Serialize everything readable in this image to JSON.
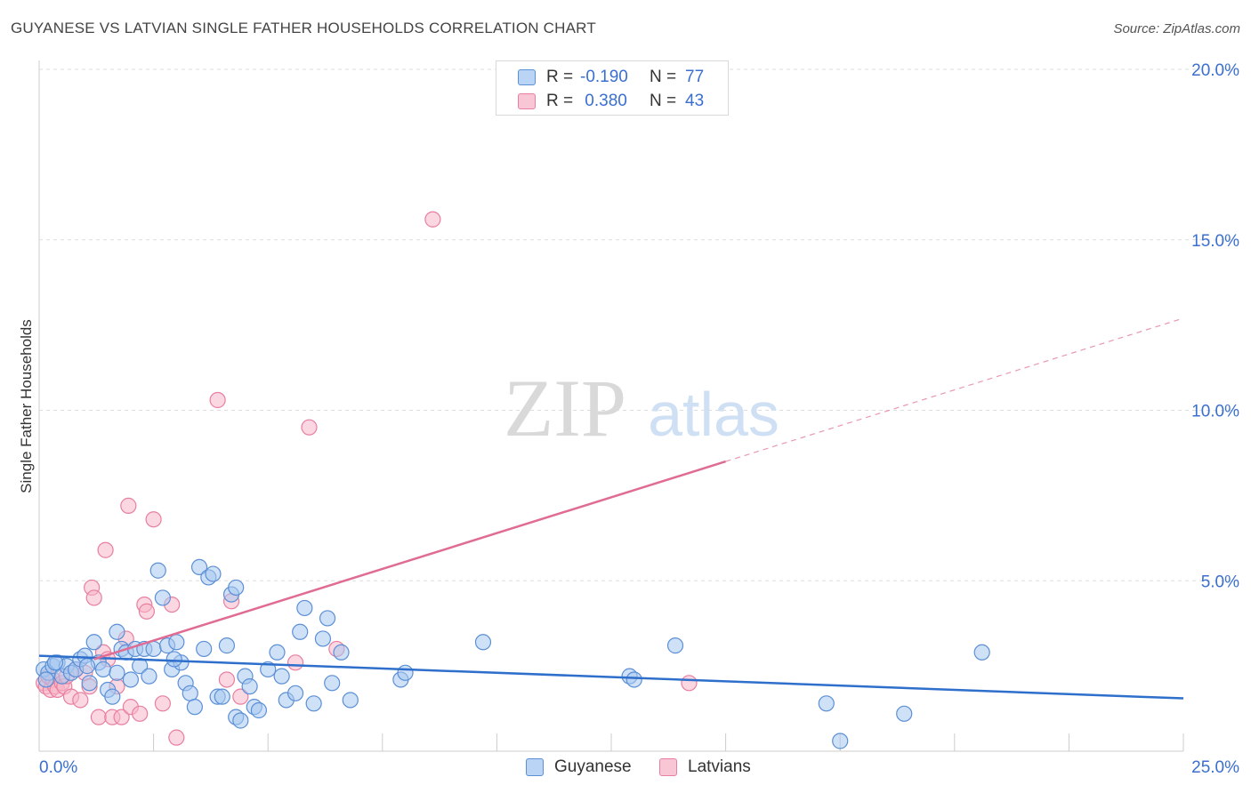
{
  "header": {
    "title": "GUYANESE VS LATVIAN SINGLE FATHER HOUSEHOLDS CORRELATION CHART",
    "source": "Source: ZipAtlas.com"
  },
  "watermark": {
    "zip": "ZIP",
    "atlas": "atlas"
  },
  "legend": {
    "rows": [
      {
        "r_label": "R =",
        "r_value": "-0.190",
        "n_label": "N =",
        "n_value": "77"
      },
      {
        "r_label": "R =",
        "r_value": " 0.380",
        "n_label": "N =",
        "n_value": "43"
      }
    ]
  },
  "colors": {
    "guyanese_fill": "#a8c8f0",
    "guyanese_stroke": "#5b8fd6",
    "guyanese_line": "#2f6fcc",
    "latvians_fill": "#f7b6c9",
    "latvians_stroke": "#e87fa0",
    "latvians_line": "#e06c94",
    "axis_text": "#3a6fd0",
    "grid": "#dddddd"
  },
  "chart_data": {
    "type": "scatter",
    "title": "GUYANESE VS LATVIAN SINGLE FATHER HOUSEHOLDS CORRELATION CHART",
    "xlabel": "",
    "ylabel": "Single Father Households",
    "xlim": [
      0,
      25
    ],
    "ylim": [
      0,
      20
    ],
    "x_tick_labels": [
      "0.0%",
      "25.0%"
    ],
    "y_ticks": [
      5,
      10,
      15,
      20
    ],
    "y_tick_labels": [
      "5.0%",
      "10.0%",
      "15.0%",
      "20.0%"
    ],
    "legend_position": "bottom-center",
    "series": [
      {
        "name": "Guyanese",
        "r": -0.19,
        "n": 77,
        "trend": {
          "x0": 0,
          "y0": 2.8,
          "x1": 25,
          "y1": 1.55,
          "solid_until": 25
        },
        "points": [
          [
            0.1,
            2.4
          ],
          [
            0.2,
            2.3
          ],
          [
            0.3,
            2.5
          ],
          [
            0.4,
            2.6
          ],
          [
            0.5,
            2.2
          ],
          [
            0.6,
            2.5
          ],
          [
            0.7,
            2.3
          ],
          [
            0.8,
            2.4
          ],
          [
            0.9,
            2.7
          ],
          [
            1.0,
            2.8
          ],
          [
            1.1,
            2.0
          ],
          [
            1.2,
            3.2
          ],
          [
            1.3,
            2.6
          ],
          [
            1.4,
            2.4
          ],
          [
            1.5,
            1.8
          ],
          [
            1.6,
            1.6
          ],
          [
            1.7,
            2.3
          ],
          [
            1.7,
            3.5
          ],
          [
            1.8,
            3.0
          ],
          [
            1.9,
            2.9
          ],
          [
            2.0,
            2.1
          ],
          [
            2.1,
            3.0
          ],
          [
            2.2,
            2.5
          ],
          [
            2.3,
            3.0
          ],
          [
            2.4,
            2.2
          ],
          [
            2.5,
            3.0
          ],
          [
            2.6,
            5.3
          ],
          [
            2.7,
            4.5
          ],
          [
            2.8,
            3.1
          ],
          [
            2.9,
            2.4
          ],
          [
            3.0,
            3.2
          ],
          [
            3.1,
            2.6
          ],
          [
            3.2,
            2.0
          ],
          [
            3.3,
            1.7
          ],
          [
            3.4,
            1.3
          ],
          [
            3.5,
            5.4
          ],
          [
            3.6,
            3.0
          ],
          [
            3.7,
            5.1
          ],
          [
            3.8,
            5.2
          ],
          [
            3.9,
            1.6
          ],
          [
            4.0,
            1.6
          ],
          [
            4.1,
            3.1
          ],
          [
            4.2,
            4.6
          ],
          [
            4.3,
            4.8
          ],
          [
            4.3,
            1.0
          ],
          [
            4.4,
            0.9
          ],
          [
            4.5,
            2.2
          ],
          [
            4.6,
            1.9
          ],
          [
            4.7,
            1.3
          ],
          [
            4.8,
            1.2
          ],
          [
            5.0,
            2.4
          ],
          [
            5.2,
            2.9
          ],
          [
            5.3,
            2.2
          ],
          [
            5.4,
            1.5
          ],
          [
            5.6,
            1.7
          ],
          [
            5.7,
            3.5
          ],
          [
            5.8,
            4.2
          ],
          [
            6.0,
            1.4
          ],
          [
            6.2,
            3.3
          ],
          [
            6.3,
            3.9
          ],
          [
            6.4,
            2.0
          ],
          [
            6.6,
            2.9
          ],
          [
            6.8,
            1.5
          ],
          [
            7.9,
            2.1
          ],
          [
            8.0,
            2.3
          ],
          [
            9.7,
            3.2
          ],
          [
            12.9,
            2.2
          ],
          [
            13.0,
            2.1
          ],
          [
            13.9,
            3.1
          ],
          [
            17.2,
            1.4
          ],
          [
            17.5,
            0.3
          ],
          [
            18.9,
            1.1
          ],
          [
            20.6,
            2.9
          ],
          [
            0.15,
            2.1
          ],
          [
            0.35,
            2.6
          ],
          [
            1.05,
            2.5
          ],
          [
            2.95,
            2.7
          ]
        ]
      },
      {
        "name": "Latvians",
        "r": 0.38,
        "n": 43,
        "trend": {
          "x0": 1.2,
          "y0": 2.7,
          "x1": 25,
          "y1": 12.7,
          "solid_until": 15
        },
        "points": [
          [
            0.1,
            2.0
          ],
          [
            0.15,
            1.9
          ],
          [
            0.2,
            2.2
          ],
          [
            0.25,
            1.8
          ],
          [
            0.3,
            2.1
          ],
          [
            0.35,
            1.9
          ],
          [
            0.4,
            1.8
          ],
          [
            0.5,
            2.0
          ],
          [
            0.55,
            1.9
          ],
          [
            0.6,
            2.2
          ],
          [
            0.7,
            1.6
          ],
          [
            0.8,
            2.4
          ],
          [
            0.9,
            1.5
          ],
          [
            1.0,
            2.3
          ],
          [
            1.1,
            1.9
          ],
          [
            1.15,
            4.8
          ],
          [
            1.2,
            4.5
          ],
          [
            1.3,
            1.0
          ],
          [
            1.4,
            2.9
          ],
          [
            1.45,
            5.9
          ],
          [
            1.5,
            2.7
          ],
          [
            1.6,
            1.0
          ],
          [
            1.7,
            1.9
          ],
          [
            1.8,
            1.0
          ],
          [
            1.9,
            3.3
          ],
          [
            1.95,
            7.2
          ],
          [
            2.0,
            1.3
          ],
          [
            2.2,
            1.1
          ],
          [
            2.3,
            4.3
          ],
          [
            2.35,
            4.1
          ],
          [
            2.5,
            6.8
          ],
          [
            2.7,
            1.4
          ],
          [
            2.9,
            4.3
          ],
          [
            3.0,
            0.4
          ],
          [
            3.9,
            10.3
          ],
          [
            4.1,
            2.1
          ],
          [
            4.2,
            4.4
          ],
          [
            4.4,
            1.6
          ],
          [
            5.6,
            2.6
          ],
          [
            5.9,
            9.5
          ],
          [
            6.5,
            3.0
          ],
          [
            8.6,
            15.6
          ],
          [
            14.2,
            2.0
          ]
        ]
      }
    ]
  }
}
